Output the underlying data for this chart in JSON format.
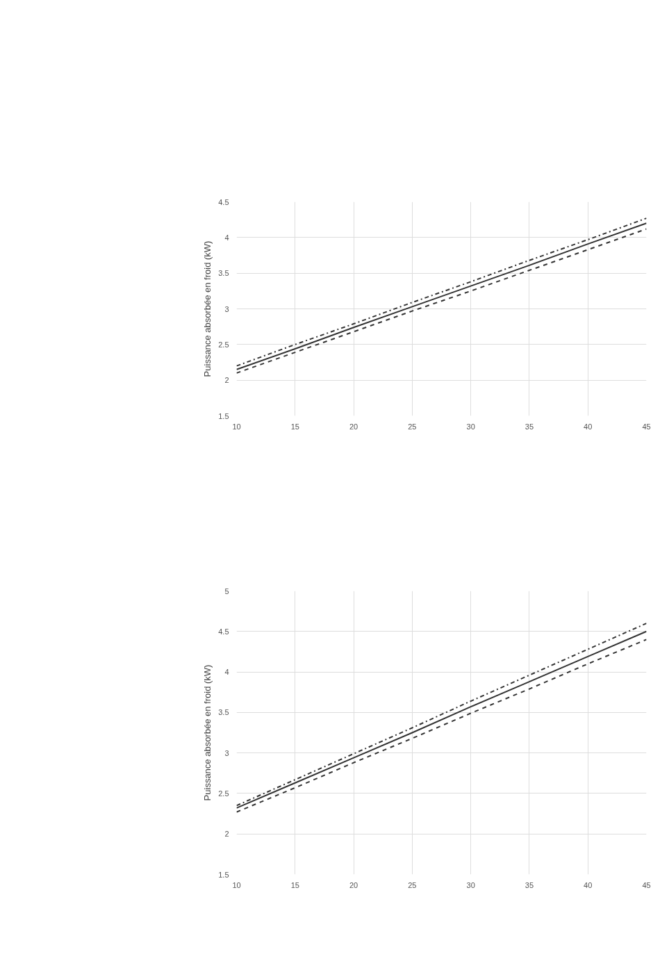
{
  "chart_data": [
    {
      "type": "line",
      "ylabel": "Puissance absorbée en froid (kW)",
      "x": [
        10,
        15,
        20,
        25,
        30,
        35,
        40,
        45
      ],
      "xlim": [
        10,
        45
      ],
      "xticks": [
        10,
        15,
        20,
        25,
        30,
        35,
        40,
        45
      ],
      "ylim": [
        1.5,
        4.5
      ],
      "yticks": [
        1.5,
        2,
        2.5,
        3,
        3.5,
        4,
        4.5
      ],
      "grid": true,
      "marker": "none",
      "series": [
        {
          "color": "#333333",
          "values": [
            2.2,
            2.5,
            2.79,
            3.09,
            3.38,
            3.68,
            3.97,
            4.27
          ],
          "line_style": "dashdot"
        },
        {
          "color": "#333333",
          "values": [
            2.15,
            2.44,
            2.74,
            3.03,
            3.32,
            3.61,
            3.91,
            4.2
          ],
          "line_style": "solid"
        },
        {
          "color": "#333333",
          "values": [
            2.1,
            2.39,
            2.68,
            2.97,
            3.25,
            3.54,
            3.83,
            4.12
          ],
          "line_style": "dashed"
        }
      ]
    },
    {
      "type": "line",
      "ylabel": "Puissance absorbée en froid (kW)",
      "x": [
        10,
        15,
        20,
        25,
        30,
        35,
        40,
        45
      ],
      "xlim": [
        10,
        45
      ],
      "xticks": [
        10,
        15,
        20,
        25,
        30,
        35,
        40,
        45
      ],
      "ylim": [
        1.5,
        5
      ],
      "yticks": [
        1.5,
        2,
        2.5,
        3,
        3.5,
        4,
        4.5,
        5
      ],
      "grid": true,
      "marker": "none",
      "series": [
        {
          "color": "#333333",
          "values": [
            2.35,
            2.67,
            2.99,
            3.31,
            3.64,
            3.96,
            4.28,
            4.6
          ],
          "line_style": "dashdot"
        },
        {
          "color": "#333333",
          "values": [
            2.32,
            2.63,
            2.94,
            3.25,
            3.57,
            3.88,
            4.19,
            4.5
          ],
          "line_style": "solid"
        },
        {
          "color": "#333333",
          "values": [
            2.27,
            2.57,
            2.88,
            3.18,
            3.49,
            3.79,
            4.1,
            4.4
          ],
          "line_style": "dashed"
        }
      ]
    }
  ]
}
